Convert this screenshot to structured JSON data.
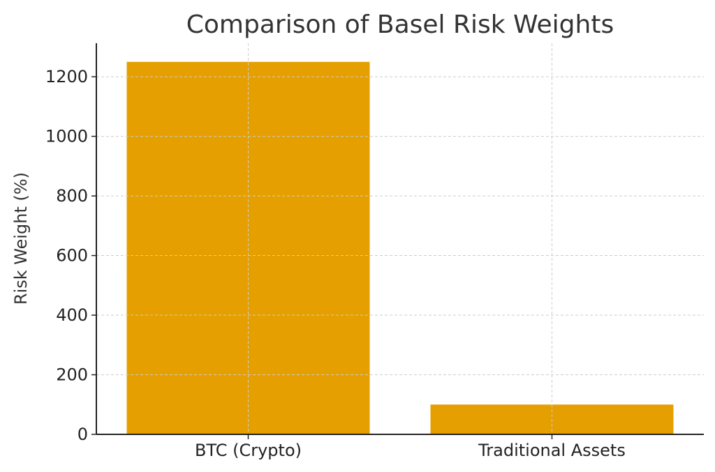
{
  "chart_data": {
    "type": "bar",
    "title": "Comparison of Basel Risk Weights",
    "xlabel": "",
    "ylabel": "Risk Weight (%)",
    "categories": [
      "BTC (Crypto)",
      "Traditional Assets"
    ],
    "values": [
      1250,
      100
    ],
    "ylim": [
      0,
      1312.5
    ],
    "yticks": [
      0,
      200,
      400,
      600,
      800,
      1000,
      1200
    ],
    "grid": true,
    "bar_color": "#E69F00",
    "grid_color": "#cccccc"
  }
}
